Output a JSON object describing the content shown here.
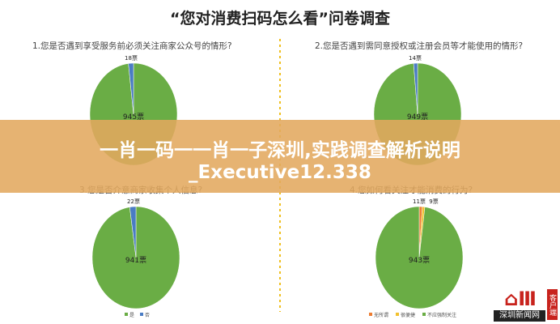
{
  "title": "“您对消费扫码怎么看”问卷调查",
  "banner": {
    "line1": "一肖一码一一肖一子深圳,实践调查解析说明",
    "line2": "_Executive12.338"
  },
  "logo": {
    "text": "深圳新闻网",
    "badge": "客户端"
  },
  "colors": {
    "green": "#6aad45",
    "blue": "#4a7cc4",
    "orange": "#ed7d31",
    "yellow": "#f2c12e",
    "divider": "#f0c020"
  },
  "chart_data": [
    {
      "type": "pie",
      "title": "1.您是否遇到享受服务前必须关注商家公众号的情形?",
      "slices": [
        {
          "name": "是",
          "value": 945,
          "label": "945票",
          "color": "#6aad45"
        },
        {
          "name": "否",
          "value": 18,
          "label": "18票",
          "color": "#4a7cc4"
        }
      ]
    },
    {
      "type": "pie",
      "title": "2.您是否遇到需同意授权或注册会员等才能使用的情形?",
      "slices": [
        {
          "name": "是",
          "value": 949,
          "label": "949票",
          "color": "#6aad45"
        },
        {
          "name": "否",
          "value": 14,
          "label": "14票",
          "color": "#4a7cc4"
        }
      ]
    },
    {
      "type": "pie",
      "title": "3.您是否介意商家收集个人信息?",
      "legend": [
        "是",
        "否"
      ],
      "slices": [
        {
          "name": "是",
          "value": 941,
          "label": "941票",
          "color": "#6aad45"
        },
        {
          "name": "否",
          "value": 22,
          "label": "22票",
          "color": "#4a7cc4"
        }
      ]
    },
    {
      "type": "pie",
      "title": "4.您如何看关注才能消费的行为?",
      "legend": [
        "无所谓",
        "很便捷",
        "不应强制关注"
      ],
      "slices": [
        {
          "name": "无所谓",
          "value": 11,
          "label": "11票",
          "color": "#ed7d31"
        },
        {
          "name": "很便捷",
          "value": 9,
          "label": "9票",
          "color": "#f2c12e"
        },
        {
          "name": "不应强制关注",
          "value": 943,
          "label": "943票",
          "color": "#6aad45"
        }
      ]
    }
  ]
}
